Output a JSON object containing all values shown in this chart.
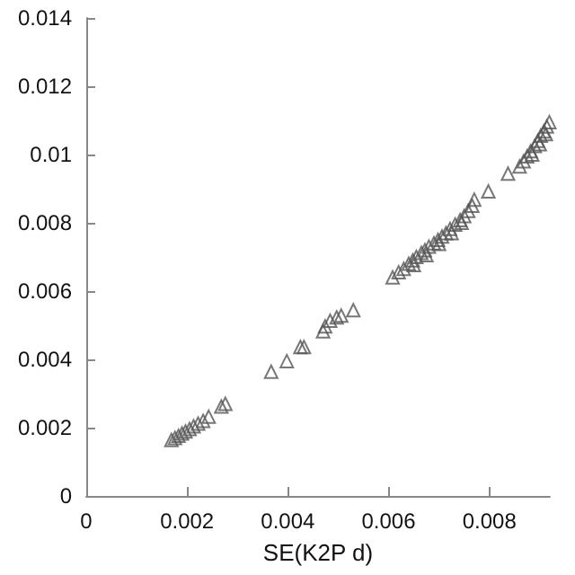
{
  "chart_data": {
    "type": "scatter",
    "xlabel": "SE(K2P d)",
    "marker": "triangle",
    "grid": false,
    "xlim": [
      0,
      0.0092
    ],
    "xticks": [
      0,
      0.002,
      0.004,
      0.006,
      0.008
    ],
    "ylim": [
      0,
      0.014
    ],
    "yticks": [
      0,
      0.002,
      0.004,
      0.006,
      0.008,
      0.01,
      0.012,
      0.014
    ],
    "series": [
      {
        "color": "#555555",
        "x": [
          0.00169,
          0.00176,
          0.00183,
          0.0019,
          0.00197,
          0.00205,
          0.00213,
          0.00222,
          0.00232,
          0.00243,
          0.00268,
          0.00276,
          0.00367,
          0.00398,
          0.00425,
          0.00432,
          0.0047,
          0.00474,
          0.00484,
          0.00497,
          0.00506,
          0.0053,
          0.00608,
          0.0062,
          0.0063,
          0.0064,
          0.00648,
          0.00655,
          0.00665,
          0.00672,
          0.0068,
          0.0069,
          0.00698,
          0.00706,
          0.00714,
          0.00722,
          0.00732,
          0.00742,
          0.0075,
          0.00758,
          0.00766,
          0.0077,
          0.0065,
          0.00675,
          0.007,
          0.00725,
          0.00745,
          0.00798,
          0.00837,
          0.0086,
          0.00868,
          0.00875,
          0.00882,
          0.0089,
          0.00896,
          0.00902,
          0.00908,
          0.00914,
          0.00919,
          0.00885,
          0.009,
          0.00912
        ],
        "values": [
          0.00164,
          0.0017,
          0.00176,
          0.00183,
          0.00189,
          0.00196,
          0.00204,
          0.00212,
          0.0022,
          0.00232,
          0.00262,
          0.0027,
          0.00364,
          0.00395,
          0.00436,
          0.00436,
          0.00482,
          0.00497,
          0.00513,
          0.00523,
          0.00528,
          0.00544,
          0.0064,
          0.00655,
          0.00665,
          0.0068,
          0.0069,
          0.007,
          0.00712,
          0.0072,
          0.0073,
          0.0074,
          0.0075,
          0.0076,
          0.0077,
          0.00782,
          0.00795,
          0.00808,
          0.0082,
          0.00835,
          0.0085,
          0.00868,
          0.00676,
          0.00705,
          0.00738,
          0.0077,
          0.008,
          0.00892,
          0.00944,
          0.00965,
          0.0098,
          0.00995,
          0.0101,
          0.01025,
          0.0104,
          0.01055,
          0.01068,
          0.01082,
          0.01095,
          0.01,
          0.0103,
          0.0106
        ]
      }
    ]
  }
}
